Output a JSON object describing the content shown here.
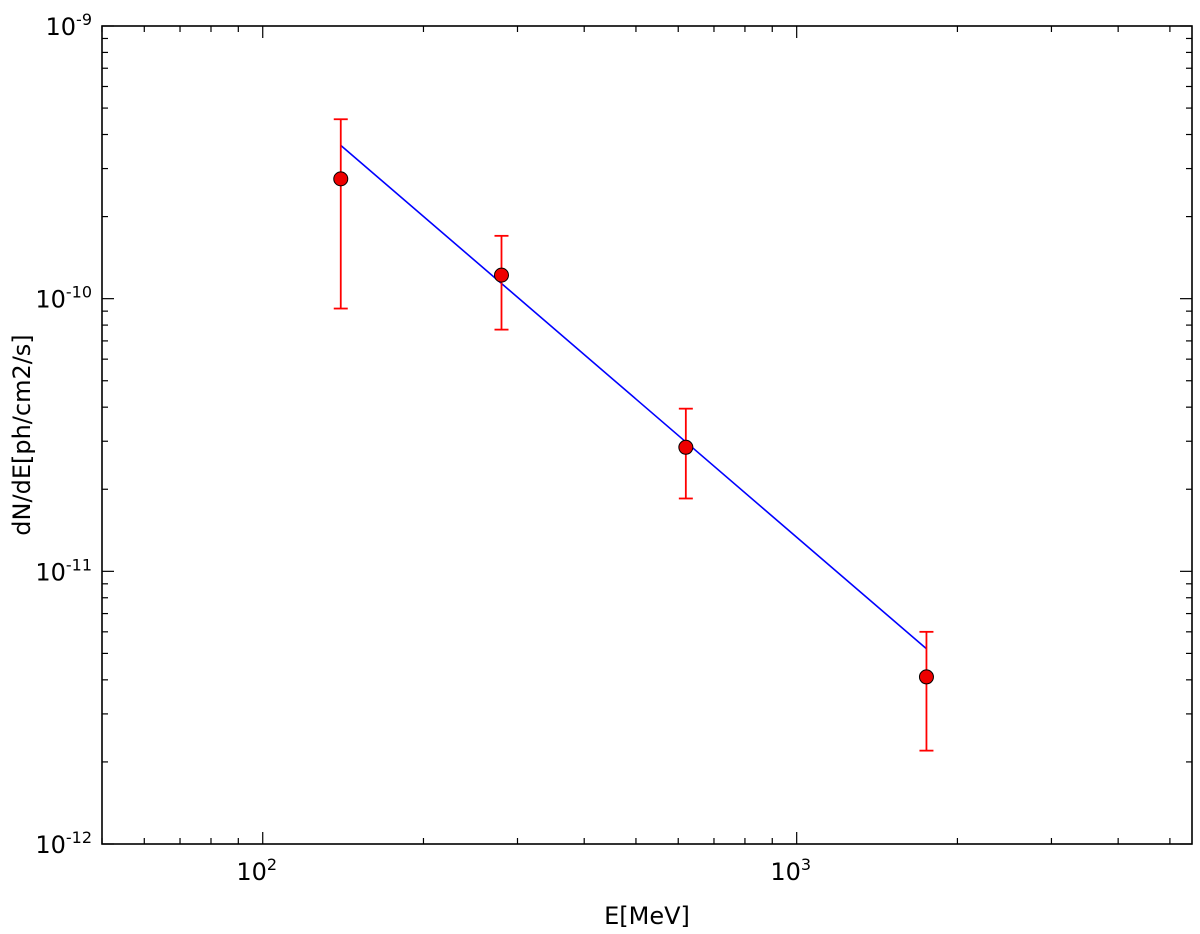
{
  "chart_data": {
    "type": "scatter",
    "xscale": "log",
    "yscale": "log",
    "xlim": [
      50,
      5500
    ],
    "ylim": [
      1e-12,
      1e-09
    ],
    "xlabel": "E[MeV]",
    "ylabel": "dN/dE[ph/cm2/s]",
    "grid": false,
    "x_ticks": [
      {
        "value": 100,
        "base": "10",
        "exp": "2"
      },
      {
        "value": 1000,
        "base": "10",
        "exp": "3"
      }
    ],
    "y_ticks": [
      {
        "value": 1e-12,
        "base": "10",
        "exp": "-12"
      },
      {
        "value": 1e-11,
        "base": "10",
        "exp": "-11"
      },
      {
        "value": 1e-10,
        "base": "10",
        "exp": "-10"
      },
      {
        "value": 1e-09,
        "base": "10",
        "exp": "-9"
      }
    ],
    "series": [
      {
        "kind": "points_with_errorbars",
        "color": "#ff0000",
        "marker_fill": "#ee0000",
        "x": [
          140,
          280,
          620,
          1750
        ],
        "y": [
          2.75e-10,
          1.22e-10,
          2.85e-11,
          4.1e-12
        ],
        "y_low": [
          9.2e-11,
          7.7e-11,
          1.85e-11,
          2.2e-12
        ],
        "y_high": [
          4.55e-10,
          1.7e-10,
          3.95e-11,
          6e-12
        ]
      },
      {
        "kind": "fit_line",
        "color": "#0000ff",
        "x": [
          140,
          1750
        ],
        "y": [
          3.65e-10,
          5.2e-12
        ]
      }
    ]
  }
}
